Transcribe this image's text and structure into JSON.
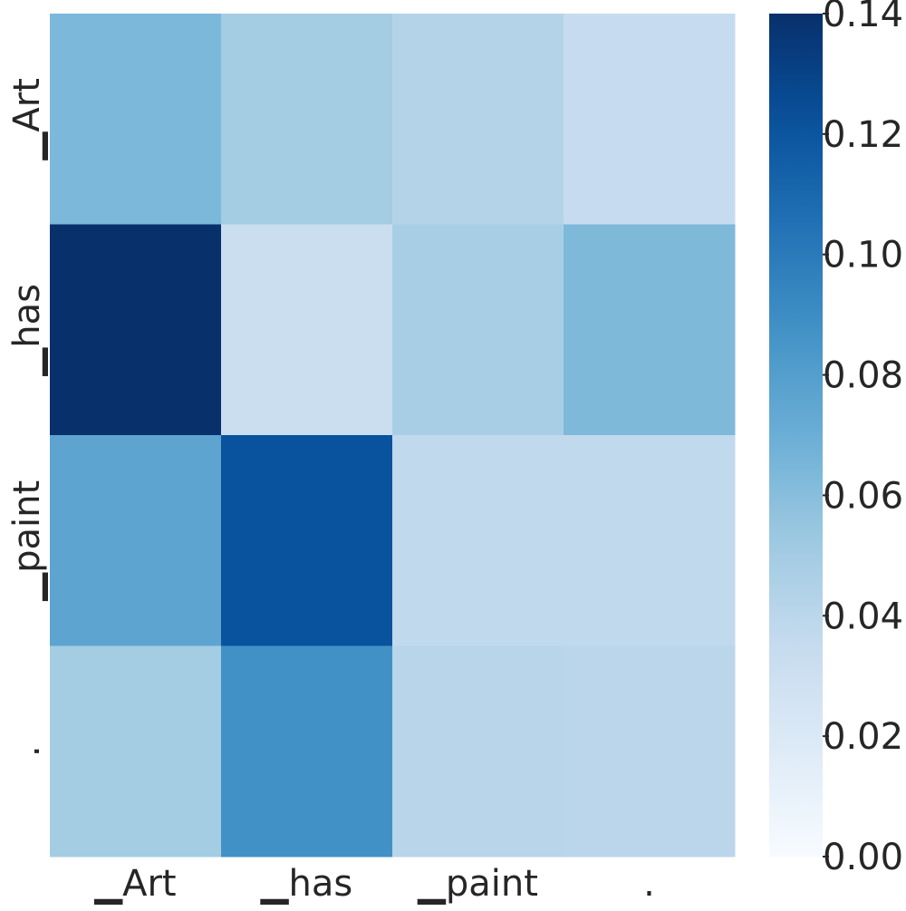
{
  "chart_data": {
    "type": "heatmap",
    "title": "",
    "xlabel": "",
    "ylabel": "",
    "x_categories": [
      "▁Art",
      "▁has",
      "▁paint",
      "."
    ],
    "y_categories": [
      "▁Art",
      "▁has",
      "▁paint",
      "."
    ],
    "values": [
      [
        0.064,
        0.05,
        0.043,
        0.035
      ],
      [
        0.14,
        0.032,
        0.048,
        0.063
      ],
      [
        0.076,
        0.122,
        0.037,
        0.037
      ],
      [
        0.05,
        0.088,
        0.041,
        0.04
      ]
    ],
    "colormap": "Blues",
    "color_range": [
      0.0,
      0.14
    ],
    "colorbar": {
      "ticks": [
        0.0,
        0.02,
        0.04,
        0.06,
        0.08,
        0.1,
        0.12,
        0.14
      ],
      "tick_labels": [
        "0.00",
        "0.02",
        "0.04",
        "0.06",
        "0.08",
        "0.10",
        "0.12",
        "0.14"
      ],
      "position": "right"
    },
    "grid": false,
    "legend": "none"
  }
}
